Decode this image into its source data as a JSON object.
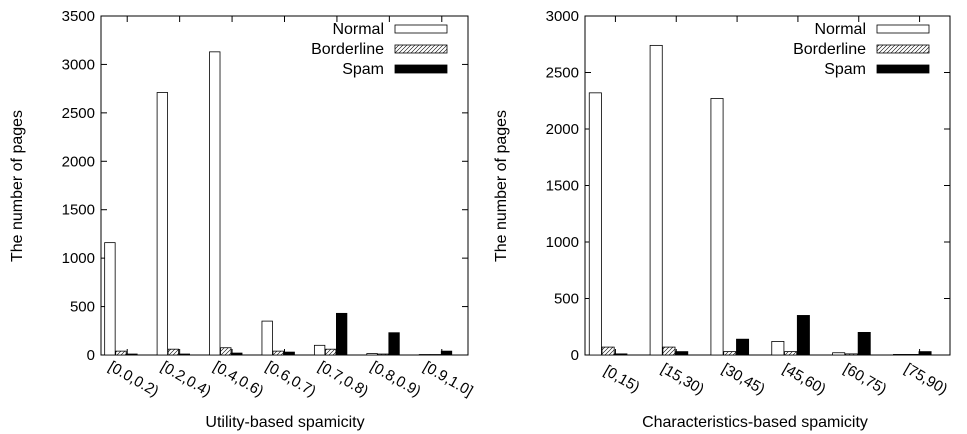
{
  "chart_data": [
    {
      "type": "bar",
      "xlabel": "Utility-based spamicity",
      "ylabel": "The number of pages",
      "ylim": [
        0,
        3500
      ],
      "yticks": [
        0,
        500,
        1000,
        1500,
        2000,
        2500,
        3000,
        3500
      ],
      "categories": [
        "[0.0,0.2)",
        "[0.2,0.4)",
        "[0.4,0.6)",
        "[0.6,0.7)",
        "[0.7,0.8)",
        "[0.8,0.9)",
        "[0.9,1.0]"
      ],
      "series": [
        {
          "name": "Normal",
          "values": [
            1160,
            2710,
            3130,
            350,
            100,
            15,
            5
          ]
        },
        {
          "name": "Borderline",
          "values": [
            40,
            60,
            75,
            40,
            60,
            10,
            5
          ]
        },
        {
          "name": "Spam",
          "values": [
            10,
            10,
            20,
            30,
            430,
            230,
            40
          ]
        }
      ],
      "legend": "top-right",
      "grid": false
    },
    {
      "type": "bar",
      "xlabel": "Characteristics-based spamicity",
      "ylabel": "The number of pages",
      "ylim": [
        0,
        3000
      ],
      "yticks": [
        0,
        500,
        1000,
        1500,
        2000,
        2500,
        3000
      ],
      "categories": [
        "[0,15)",
        "[15,30)",
        "[30,45)",
        "[45,60)",
        "[60,75)",
        "[75,90)"
      ],
      "series": [
        {
          "name": "Normal",
          "values": [
            2320,
            2740,
            2270,
            120,
            20,
            5
          ]
        },
        {
          "name": "Borderline",
          "values": [
            70,
            70,
            30,
            30,
            10,
            5
          ]
        },
        {
          "name": "Spam",
          "values": [
            10,
            30,
            140,
            350,
            200,
            30
          ]
        }
      ],
      "legend": "top-right",
      "grid": false
    }
  ]
}
